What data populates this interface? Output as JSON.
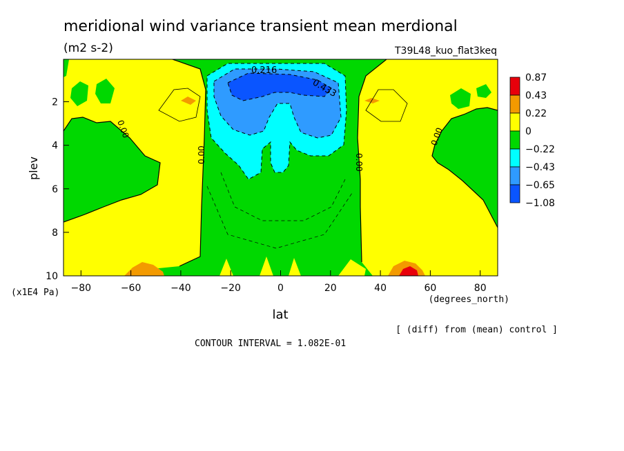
{
  "title": "meridional wind variance transient mean merdional",
  "units": "(m2 s-2)",
  "experiment": "T39L48_kuo_flat3keq",
  "footnote": "[ (diff) from (mean) control ]",
  "contour_interval_text": "CONTOUR INTERVAL = 1.082E-01",
  "colors": {
    "red": "#e8000b",
    "orange": "#f39a00",
    "yellow": "#ffff00",
    "green": "#00d800",
    "cyan": "#00ffff",
    "lightblue": "#2f9bff",
    "blue": "#0a55ff"
  },
  "chart_data": {
    "type": "heatmap",
    "xlabel": "lat",
    "xunits": "(degrees_north)",
    "ylabel": "plev",
    "yunits": "(x1E4 Pa)",
    "xlim": [
      -87,
      87
    ],
    "ylim": [
      10,
      0.05
    ],
    "xticks": [
      -80,
      -60,
      -40,
      -20,
      0,
      20,
      40,
      60,
      80
    ],
    "xtick_labels": [
      "−80",
      "−60",
      "−40",
      "−20",
      "0",
      "20",
      "40",
      "60",
      "80"
    ],
    "yticks": [
      2,
      4,
      6,
      8,
      10
    ],
    "ytick_labels": [
      "2",
      "4",
      "6",
      "8",
      "10"
    ],
    "colorbar": {
      "labels": [
        "0.87",
        "0.43",
        "0.22",
        "0",
        "−0.22",
        "−0.43",
        "−0.65",
        "−1.08"
      ],
      "colors": [
        "#e8000b",
        "#f39a00",
        "#ffff00",
        "#00d800",
        "#00ffff",
        "#2f9bff",
        "#0a55ff"
      ]
    },
    "contour_labels": [
      "0.216",
      "0.433",
      "0.00",
      "0.00",
      "0.00",
      "0.00"
    ],
    "contour_interval": 0.1082
  }
}
